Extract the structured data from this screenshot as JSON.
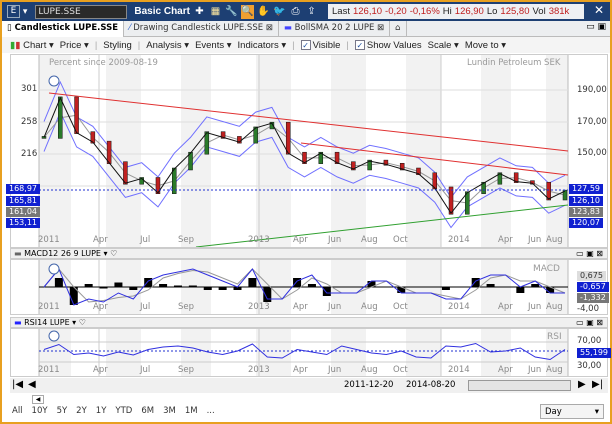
{
  "toolbar": {
    "e_label": "E",
    "symbol": "LUPE.SSE",
    "title": "Basic Chart",
    "icons": [
      "plus-icon",
      "grid-icon",
      "wrench-icon",
      "zoom-icon",
      "hand-icon",
      "twitter-icon",
      "print-icon",
      "export-icon"
    ],
    "quote": {
      "last_label": "Last",
      "last": "126,10",
      "change": "-0,20",
      "change_pct": "-0,16%",
      "hi_label": "Hi",
      "hi": "126,90",
      "lo_label": "Lo",
      "lo": "125,80",
      "vol_label": "Vol",
      "vol": "381k"
    }
  },
  "tabs": [
    {
      "label": "Candlestick LUPE.SSE"
    },
    {
      "label": "Drawing Candlestick LUPE.SSE"
    },
    {
      "label": "BollSMA 20 2 LUPE"
    }
  ],
  "menu": {
    "chart": "Chart ▾",
    "price": "Price ▾",
    "styling": "Styling",
    "analysis": "Analysis ▾",
    "events": "Events ▾",
    "indicators": "Indicators ▾",
    "visible": "Visible",
    "show_values": "Show Values",
    "scale": "Scale ▾",
    "move_to": "Move to ▾"
  },
  "main": {
    "subtitle": "Percent since 2009-08-19",
    "name": "Lundin Petroleum SEK",
    "left_ticks": [
      "301",
      "258",
      "216"
    ],
    "right_ticks": [
      "190,00",
      "170,00",
      "150,00"
    ],
    "left_labels": [
      "168,97",
      "165,81",
      "161,04",
      "153,11"
    ],
    "right_labels": [
      "127,59",
      "126,10",
      "123,83",
      "120,07"
    ],
    "x_labels": [
      "2011",
      "Apr",
      "Jul",
      "Sep",
      "2013",
      "Apr",
      "Jun",
      "Aug",
      "Oct",
      "2014",
      "Apr",
      "Jun",
      "Aug"
    ],
    "price": [
      160,
      185,
      163,
      157,
      144,
      131,
      134,
      125,
      140,
      150,
      163,
      160,
      157,
      166,
      169,
      150,
      144,
      150,
      144,
      140,
      145,
      143,
      140,
      137,
      128,
      112,
      125,
      131,
      137,
      132,
      131,
      121,
      126
    ]
  },
  "macd": {
    "header": "MACD12 26 9 LUPE",
    "name": "MACD",
    "labels": [
      "0,675",
      "-0,657",
      "-1,332"
    ],
    "tick": "-4,00",
    "values": [
      0,
      3,
      -3,
      -2,
      -2.5,
      -1,
      -2,
      1,
      2,
      2.5,
      3,
      2,
      1,
      0,
      3,
      -2,
      -2,
      1,
      2,
      -1,
      -1,
      -1,
      1,
      1,
      -1,
      -1,
      -1,
      -2,
      -2,
      1,
      2,
      2,
      0,
      1,
      -1,
      -1
    ]
  },
  "rsi": {
    "header": "RSI14 LUPE",
    "name": "RSI",
    "labels": [
      "55,199"
    ],
    "ticks": [
      "70,00",
      "30,00"
    ],
    "values": [
      55,
      65,
      45,
      48,
      42,
      50,
      44,
      55,
      60,
      62,
      58,
      50,
      45,
      52,
      66,
      40,
      38,
      55,
      50,
      45,
      62,
      55,
      48,
      45,
      52,
      40,
      38,
      62,
      60,
      67,
      50,
      52,
      58,
      40,
      35,
      55
    ]
  },
  "nav": {
    "from": "2011-12-20",
    "to": "2014-08-20"
  },
  "periods": [
    "All",
    "10Y",
    "5Y",
    "2Y",
    "1Y",
    "YTD",
    "6M",
    "3M",
    "1M",
    "..."
  ],
  "interval": "Day",
  "colors": {
    "accent": "#1d3f73",
    "down": "#c02020",
    "trend_red": "#e03030",
    "trend_green": "#30a030",
    "band": "#7070ff"
  }
}
